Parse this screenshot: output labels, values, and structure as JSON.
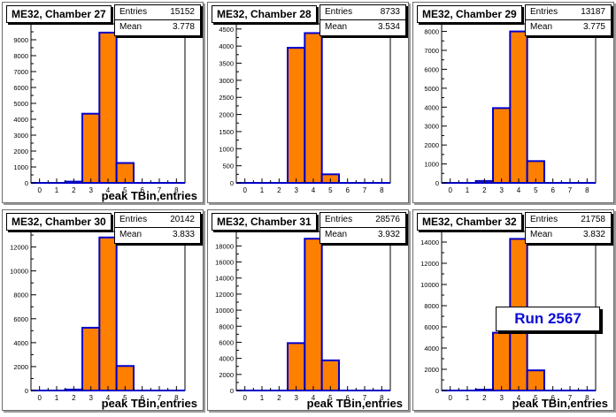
{
  "run_label": "Run 2567",
  "colors": {
    "fill": "#ff7f00",
    "outline": "#0000cc",
    "axis": "#000000"
  },
  "chart_data": [
    {
      "type": "bar",
      "title": "ME32, Chamber 27",
      "xlabel": "peak TBin,entries",
      "stats": {
        "entries_label": "Entries",
        "entries": "15152",
        "mean_label": "Mean",
        "mean": "3.778"
      },
      "xlim": [
        -0.5,
        8.5
      ],
      "ylim": [
        0,
        10000
      ],
      "x_ticks": [
        "0",
        "1",
        "2",
        "3",
        "4",
        "5",
        "6",
        "7",
        "8"
      ],
      "y_ticks": [
        0,
        1000,
        2000,
        3000,
        4000,
        5000,
        6000,
        7000,
        8000,
        9000
      ],
      "bins": [
        0,
        1,
        2,
        3,
        4,
        5,
        6,
        7,
        8
      ],
      "values": [
        0,
        0,
        80,
        4350,
        9450,
        1250,
        0,
        0,
        0
      ]
    },
    {
      "type": "bar",
      "title": "ME32, Chamber 28",
      "xlabel": "",
      "stats": {
        "entries_label": "Entries",
        "entries": "8733",
        "mean_label": "Mean",
        "mean": "3.534"
      },
      "xlim": [
        -0.5,
        8.5
      ],
      "ylim": [
        0,
        4650
      ],
      "x_ticks": [
        "0",
        "1",
        "2",
        "3",
        "4",
        "5",
        "6",
        "7",
        "8"
      ],
      "y_ticks": [
        0,
        500,
        1000,
        1500,
        2000,
        2500,
        3000,
        3500,
        4000,
        4500
      ],
      "bins": [
        0,
        1,
        2,
        3,
        4,
        5,
        6,
        7,
        8
      ],
      "values": [
        0,
        0,
        0,
        3950,
        4380,
        250,
        0,
        0,
        0
      ]
    },
    {
      "type": "bar",
      "title": "ME32, Chamber 29",
      "xlabel": "",
      "stats": {
        "entries_label": "Entries",
        "entries": "13187",
        "mean_label": "Mean",
        "mean": "3.775"
      },
      "xlim": [
        -0.5,
        8.5
      ],
      "ylim": [
        0,
        8400
      ],
      "x_ticks": [
        "0",
        "1",
        "2",
        "3",
        "4",
        "5",
        "6",
        "7",
        "8"
      ],
      "y_ticks": [
        0,
        1000,
        2000,
        3000,
        4000,
        5000,
        6000,
        7000,
        8000
      ],
      "bins": [
        0,
        1,
        2,
        3,
        4,
        5,
        6,
        7,
        8
      ],
      "values": [
        0,
        0,
        100,
        3950,
        8000,
        1150,
        0,
        0,
        0
      ]
    },
    {
      "type": "bar",
      "title": "ME32, Chamber 30",
      "xlabel": "peak TBin,entries",
      "stats": {
        "entries_label": "Entries",
        "entries": "20142",
        "mean_label": "Mean",
        "mean": "3.833"
      },
      "xlim": [
        -0.5,
        8.5
      ],
      "ylim": [
        0,
        13300
      ],
      "x_ticks": [
        "0",
        "1",
        "2",
        "3",
        "4",
        "5",
        "6",
        "7",
        "8"
      ],
      "y_ticks": [
        0,
        2000,
        4000,
        6000,
        8000,
        10000,
        12000
      ],
      "bins": [
        0,
        1,
        2,
        3,
        4,
        5,
        6,
        7,
        8
      ],
      "values": [
        0,
        0,
        80,
        5250,
        12800,
        2050,
        0,
        0,
        0
      ]
    },
    {
      "type": "bar",
      "title": "ME32, Chamber 31",
      "xlabel": "peak TBin,entries",
      "stats": {
        "entries_label": "Entries",
        "entries": "28576",
        "mean_label": "Mean",
        "mean": "3.932"
      },
      "xlim": [
        -0.5,
        8.5
      ],
      "ylim": [
        0,
        19800
      ],
      "x_ticks": [
        "0",
        "1",
        "2",
        "3",
        "4",
        "5",
        "6",
        "7",
        "8"
      ],
      "y_ticks": [
        0,
        2000,
        4000,
        6000,
        8000,
        10000,
        12000,
        14000,
        16000,
        18000
      ],
      "bins": [
        0,
        1,
        2,
        3,
        4,
        5,
        6,
        7,
        8
      ],
      "values": [
        0,
        0,
        0,
        5900,
        18900,
        3750,
        0,
        0,
        0
      ]
    },
    {
      "type": "bar",
      "title": "ME32, Chamber 32",
      "xlabel": "peak TBin,entries",
      "stats": {
        "entries_label": "Entries",
        "entries": "21758",
        "mean_label": "Mean",
        "mean": "3.832"
      },
      "xlim": [
        -0.5,
        8.5
      ],
      "ylim": [
        0,
        15000
      ],
      "x_ticks": [
        "0",
        "1",
        "2",
        "3",
        "4",
        "5",
        "6",
        "7",
        "8"
      ],
      "y_ticks": [
        0,
        2000,
        4000,
        6000,
        8000,
        10000,
        12000,
        14000
      ],
      "bins": [
        0,
        1,
        2,
        3,
        4,
        5,
        6,
        7,
        8
      ],
      "values": [
        0,
        0,
        80,
        5450,
        14300,
        1900,
        0,
        0,
        0
      ]
    }
  ]
}
